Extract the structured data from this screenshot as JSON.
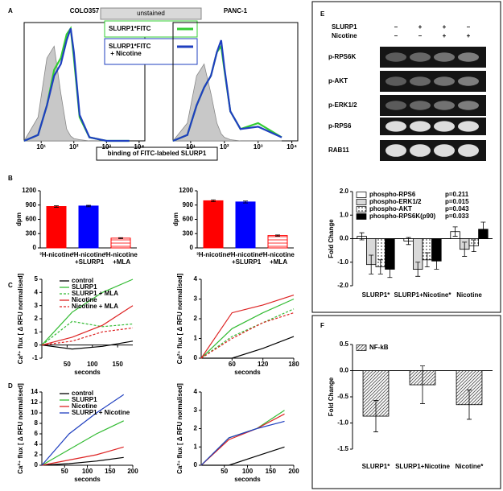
{
  "chart_data": [
    {
      "type": "line",
      "panel": "A",
      "title": "COLO357",
      "xlabel": "binding of FITC-labeled SLURP1",
      "xlog": true,
      "frame": true,
      "legend": "upper center",
      "x": [
        3,
        8,
        15,
        25,
        40,
        60,
        80,
        100,
        150,
        300,
        1000,
        5000
      ],
      "xlim": [
        3,
        15000
      ],
      "ylim": [
        0,
        100
      ],
      "xticks": [
        {
          "value": 10,
          "label": "10¹"
        },
        {
          "value": 100,
          "label": "10²"
        },
        {
          "value": 1000,
          "label": "10³"
        },
        {
          "value": 10000,
          "label": "10⁴"
        }
      ],
      "series": [
        {
          "name": "unstained",
          "color": "#aaaaaa",
          "fill": true,
          "values": [
            0,
            20,
            70,
            80,
            40,
            10,
            4,
            2,
            1,
            0,
            0,
            0
          ]
        },
        {
          "name": "SLURP1*FITC",
          "color": "#33cc33",
          "values": [
            0,
            5,
            30,
            60,
            70,
            90,
            95,
            70,
            20,
            3,
            0,
            0
          ]
        },
        {
          "name": "SLURP1*FITC + Nicotine",
          "color": "#1f3fbf",
          "values": [
            0,
            5,
            30,
            55,
            65,
            85,
            95,
            75,
            22,
            3,
            0,
            0
          ]
        }
      ]
    },
    {
      "type": "line",
      "title": "PANC-1",
      "xlog": true,
      "frame": true,
      "x": [
        3,
        8,
        15,
        25,
        40,
        60,
        80,
        100,
        150,
        300,
        1000,
        5000
      ],
      "xlim": [
        3,
        15000
      ],
      "ylim": [
        0,
        100
      ],
      "xticks": [
        {
          "value": 10,
          "label": "10¹"
        },
        {
          "value": 100,
          "label": "10²"
        },
        {
          "value": 1000,
          "label": "10³"
        },
        {
          "value": 10000,
          "label": "10⁴"
        }
      ],
      "series": [
        {
          "color": "#aaaaaa",
          "fill": true,
          "values": [
            0,
            15,
            55,
            65,
            40,
            15,
            6,
            3,
            1,
            0,
            0,
            0
          ]
        },
        {
          "color": "#33cc33",
          "values": [
            0,
            5,
            30,
            45,
            55,
            75,
            80,
            60,
            25,
            10,
            15,
            3
          ]
        },
        {
          "color": "#1f3fbf",
          "values": [
            0,
            5,
            30,
            45,
            55,
            75,
            85,
            62,
            25,
            10,
            12,
            3
          ]
        }
      ]
    },
    {
      "type": "bar",
      "panel": "B",
      "ylabel": "dpm",
      "categories": [
        "³H-nicotine",
        "³H-nicotine +SLURP1",
        "³H-nicotine +MLA"
      ],
      "values": [
        870,
        880,
        205
      ],
      "errors": [
        15,
        15,
        10
      ],
      "colors": [
        "#ff0000",
        "#0000ff",
        "#ff0000"
      ],
      "patterns": [
        "solid",
        "solid",
        "lines"
      ],
      "ylim": [
        0,
        1200
      ],
      "yticks": [
        0,
        300,
        600,
        900,
        1200
      ]
    },
    {
      "type": "bar",
      "ylabel": "dpm",
      "categories": [
        "³H-nicotine",
        "³H-nicotine +SLURP1",
        "³H-nicotine +MLA"
      ],
      "values": [
        990,
        965,
        260
      ],
      "errors": [
        20,
        20,
        12
      ],
      "colors": [
        "#ff0000",
        "#0000ff",
        "#ff0000"
      ],
      "patterns": [
        "solid",
        "solid",
        "lines"
      ],
      "ylim": [
        0,
        1200
      ],
      "yticks": [
        0,
        300,
        600,
        900,
        1200
      ]
    },
    {
      "type": "line",
      "panel": "C",
      "ylabel": "Ca²⁺ flux [ Δ RFU normalised]",
      "xlabel": "seconds",
      "legend": "upper left",
      "x": [
        0,
        60,
        120,
        180
      ],
      "xlim": [
        0,
        180
      ],
      "ylim": [
        -1,
        5
      ],
      "xticks": [
        50,
        100,
        150
      ],
      "yticks": [
        -1,
        0,
        1,
        2,
        3,
        4,
        5
      ],
      "series": [
        {
          "name": "control",
          "color": "#000000",
          "values": [
            0,
            -0.3,
            -0.1,
            0.3
          ]
        },
        {
          "name": "SLURP1",
          "color": "#33bb33",
          "values": [
            0,
            2.5,
            4,
            5
          ]
        },
        {
          "name": "SLURP1 + MLA",
          "color": "#33bb33",
          "dash": true,
          "values": [
            0,
            1.8,
            1.4,
            1.6
          ]
        },
        {
          "name": "Nicotine",
          "color": "#dd2222",
          "values": [
            0,
            0.6,
            1.5,
            3
          ]
        },
        {
          "name": "Nicotine + MLA",
          "color": "#dd2222",
          "dash": true,
          "values": [
            0,
            0.3,
            1,
            1.3
          ]
        }
      ]
    },
    {
      "type": "line",
      "ylabel": "Ca²⁺ flux [ Δ RFU normalised]",
      "xlabel": "seconds",
      "x": [
        0,
        60,
        120,
        180
      ],
      "xlim": [
        0,
        180
      ],
      "ylim": [
        0,
        4
      ],
      "xticks": [
        60,
        120,
        180
      ],
      "yticks": [
        0,
        1,
        2,
        3,
        4
      ],
      "series": [
        {
          "color": "#000000",
          "values": [
            0,
            0,
            0.5,
            1.1
          ]
        },
        {
          "color": "#33bb33",
          "values": [
            0,
            1.5,
            2.3,
            3
          ]
        },
        {
          "color": "#33bb33",
          "dash": true,
          "values": [
            0,
            1.1,
            1.8,
            2.5
          ]
        },
        {
          "color": "#dd2222",
          "values": [
            0,
            2.3,
            2.7,
            3.2
          ]
        },
        {
          "color": "#dd2222",
          "dash": true,
          "values": [
            0,
            1,
            1.8,
            2.3
          ]
        }
      ]
    },
    {
      "type": "line",
      "panel": "D",
      "ylabel": "Ca²⁺ flux [ Δ RFU normalised]",
      "xlabel": "seconds",
      "legend": "upper left",
      "x": [
        0,
        60,
        120,
        180
      ],
      "xlim": [
        0,
        200
      ],
      "ylim": [
        0,
        14
      ],
      "xticks": [
        50,
        100,
        150,
        200
      ],
      "yticks": [
        0,
        2,
        4,
        6,
        8,
        10,
        12,
        14
      ],
      "series": [
        {
          "name": "control",
          "color": "#000000",
          "values": [
            0,
            0.3,
            0.8,
            1.5
          ]
        },
        {
          "name": "SLURP1",
          "color": "#33bb33",
          "values": [
            0,
            3,
            6,
            8.5
          ]
        },
        {
          "name": "Nicotine",
          "color": "#dd2222",
          "values": [
            0,
            1,
            2,
            3.5
          ]
        },
        {
          "name": "SLURP1 + Nicotine",
          "color": "#1f3fbf",
          "values": [
            0,
            6,
            10,
            13.5
          ]
        }
      ]
    },
    {
      "type": "line",
      "ylabel": "Ca²⁺ flux [ Δ RFU normalised]",
      "xlabel": "seconds",
      "x": [
        0,
        60,
        120,
        180
      ],
      "xlim": [
        0,
        200
      ],
      "ylim": [
        0,
        4
      ],
      "xticks": [
        50,
        100,
        150,
        200
      ],
      "yticks": [
        0,
        1,
        2,
        3,
        4
      ],
      "series": [
        {
          "color": "#000000",
          "values": [
            0,
            0,
            0.5,
            1
          ]
        },
        {
          "color": "#33bb33",
          "values": [
            0,
            1.5,
            2,
            3
          ]
        },
        {
          "color": "#dd2222",
          "values": [
            0,
            1.4,
            2,
            2.8
          ]
        },
        {
          "color": "#1f3fbf",
          "values": [
            0,
            1.5,
            2,
            2.4
          ]
        }
      ]
    },
    {
      "type": "bar",
      "panel": "E",
      "ylabel": "Fold Change",
      "legend": "upper left",
      "categories": [
        "SLURP1*",
        "SLURP1+Nicotine*",
        "Nicotine"
      ],
      "ylim": [
        -2,
        2
      ],
      "yticks": [
        {
          "value": -2,
          "label": "-2.0"
        },
        {
          "value": -1,
          "label": "-1.0"
        },
        {
          "value": 0,
          "label": "0.0"
        },
        {
          "value": 1,
          "label": "1.0"
        },
        {
          "value": 2,
          "label": "2.0"
        }
      ],
      "series": [
        {
          "name": "phospho-RPS6",
          "p": "p=0.211",
          "color": "#ffffff",
          "pattern": "solid",
          "values": [
            0.1,
            -0.1,
            0.3
          ],
          "errors": [
            0.15,
            0.15,
            0.2
          ]
        },
        {
          "name": "phospho-ERK1/2",
          "p": "p=0.015",
          "color": "#d9d9d9",
          "pattern": "solid",
          "values": [
            -1.1,
            -1.3,
            -0.45
          ],
          "errors": [
            0.4,
            0.3,
            0.3
          ]
        },
        {
          "name": "phospho-AKT",
          "p": "p=0.043",
          "color": "#000000",
          "pattern": "dots",
          "values": [
            -1.2,
            -0.9,
            -0.3
          ],
          "errors": [
            0.3,
            0.3,
            0.25
          ]
        },
        {
          "name": "phospho-RPS6K(p90)",
          "p": "p=0.033",
          "color": "#000000",
          "pattern": "solid",
          "values": [
            -1.3,
            -0.95,
            0.4
          ],
          "errors": [
            0.35,
            0.35,
            0.3
          ]
        }
      ]
    },
    {
      "type": "bar",
      "panel": "F",
      "ylabel": "Fold Change",
      "legend": "upper left",
      "categories": [
        "SLURP1*",
        "SLURP1+Nicotine",
        "Nicotine*"
      ],
      "ylim": [
        -1.5,
        0.5
      ],
      "yticks": [
        {
          "value": -1.5,
          "label": "-1.5"
        },
        {
          "value": -1,
          "label": "-1.0"
        },
        {
          "value": -0.5,
          "label": "-0.5"
        },
        {
          "value": 0,
          "label": "0.0"
        },
        {
          "value": 0.5,
          "label": "0.5"
        }
      ],
      "series": [
        {
          "name": "NF-kB",
          "color": "#555555",
          "pattern": "hatch",
          "values": [
            -0.87,
            -0.27,
            -0.65
          ],
          "errors": [
            0.3,
            0.36,
            0.28
          ]
        }
      ]
    }
  ],
  "blot": {
    "treatments": [
      {
        "name": "SLURP1",
        "signs": [
          "–",
          "+",
          "+",
          "–"
        ]
      },
      {
        "name": "Nicotine",
        "signs": [
          "–",
          "–",
          "+",
          "+"
        ]
      }
    ],
    "rows": [
      "p-RPS6K",
      "p-AKT",
      "p-ERK1/2",
      "p-RPS6",
      "RAB11"
    ]
  }
}
